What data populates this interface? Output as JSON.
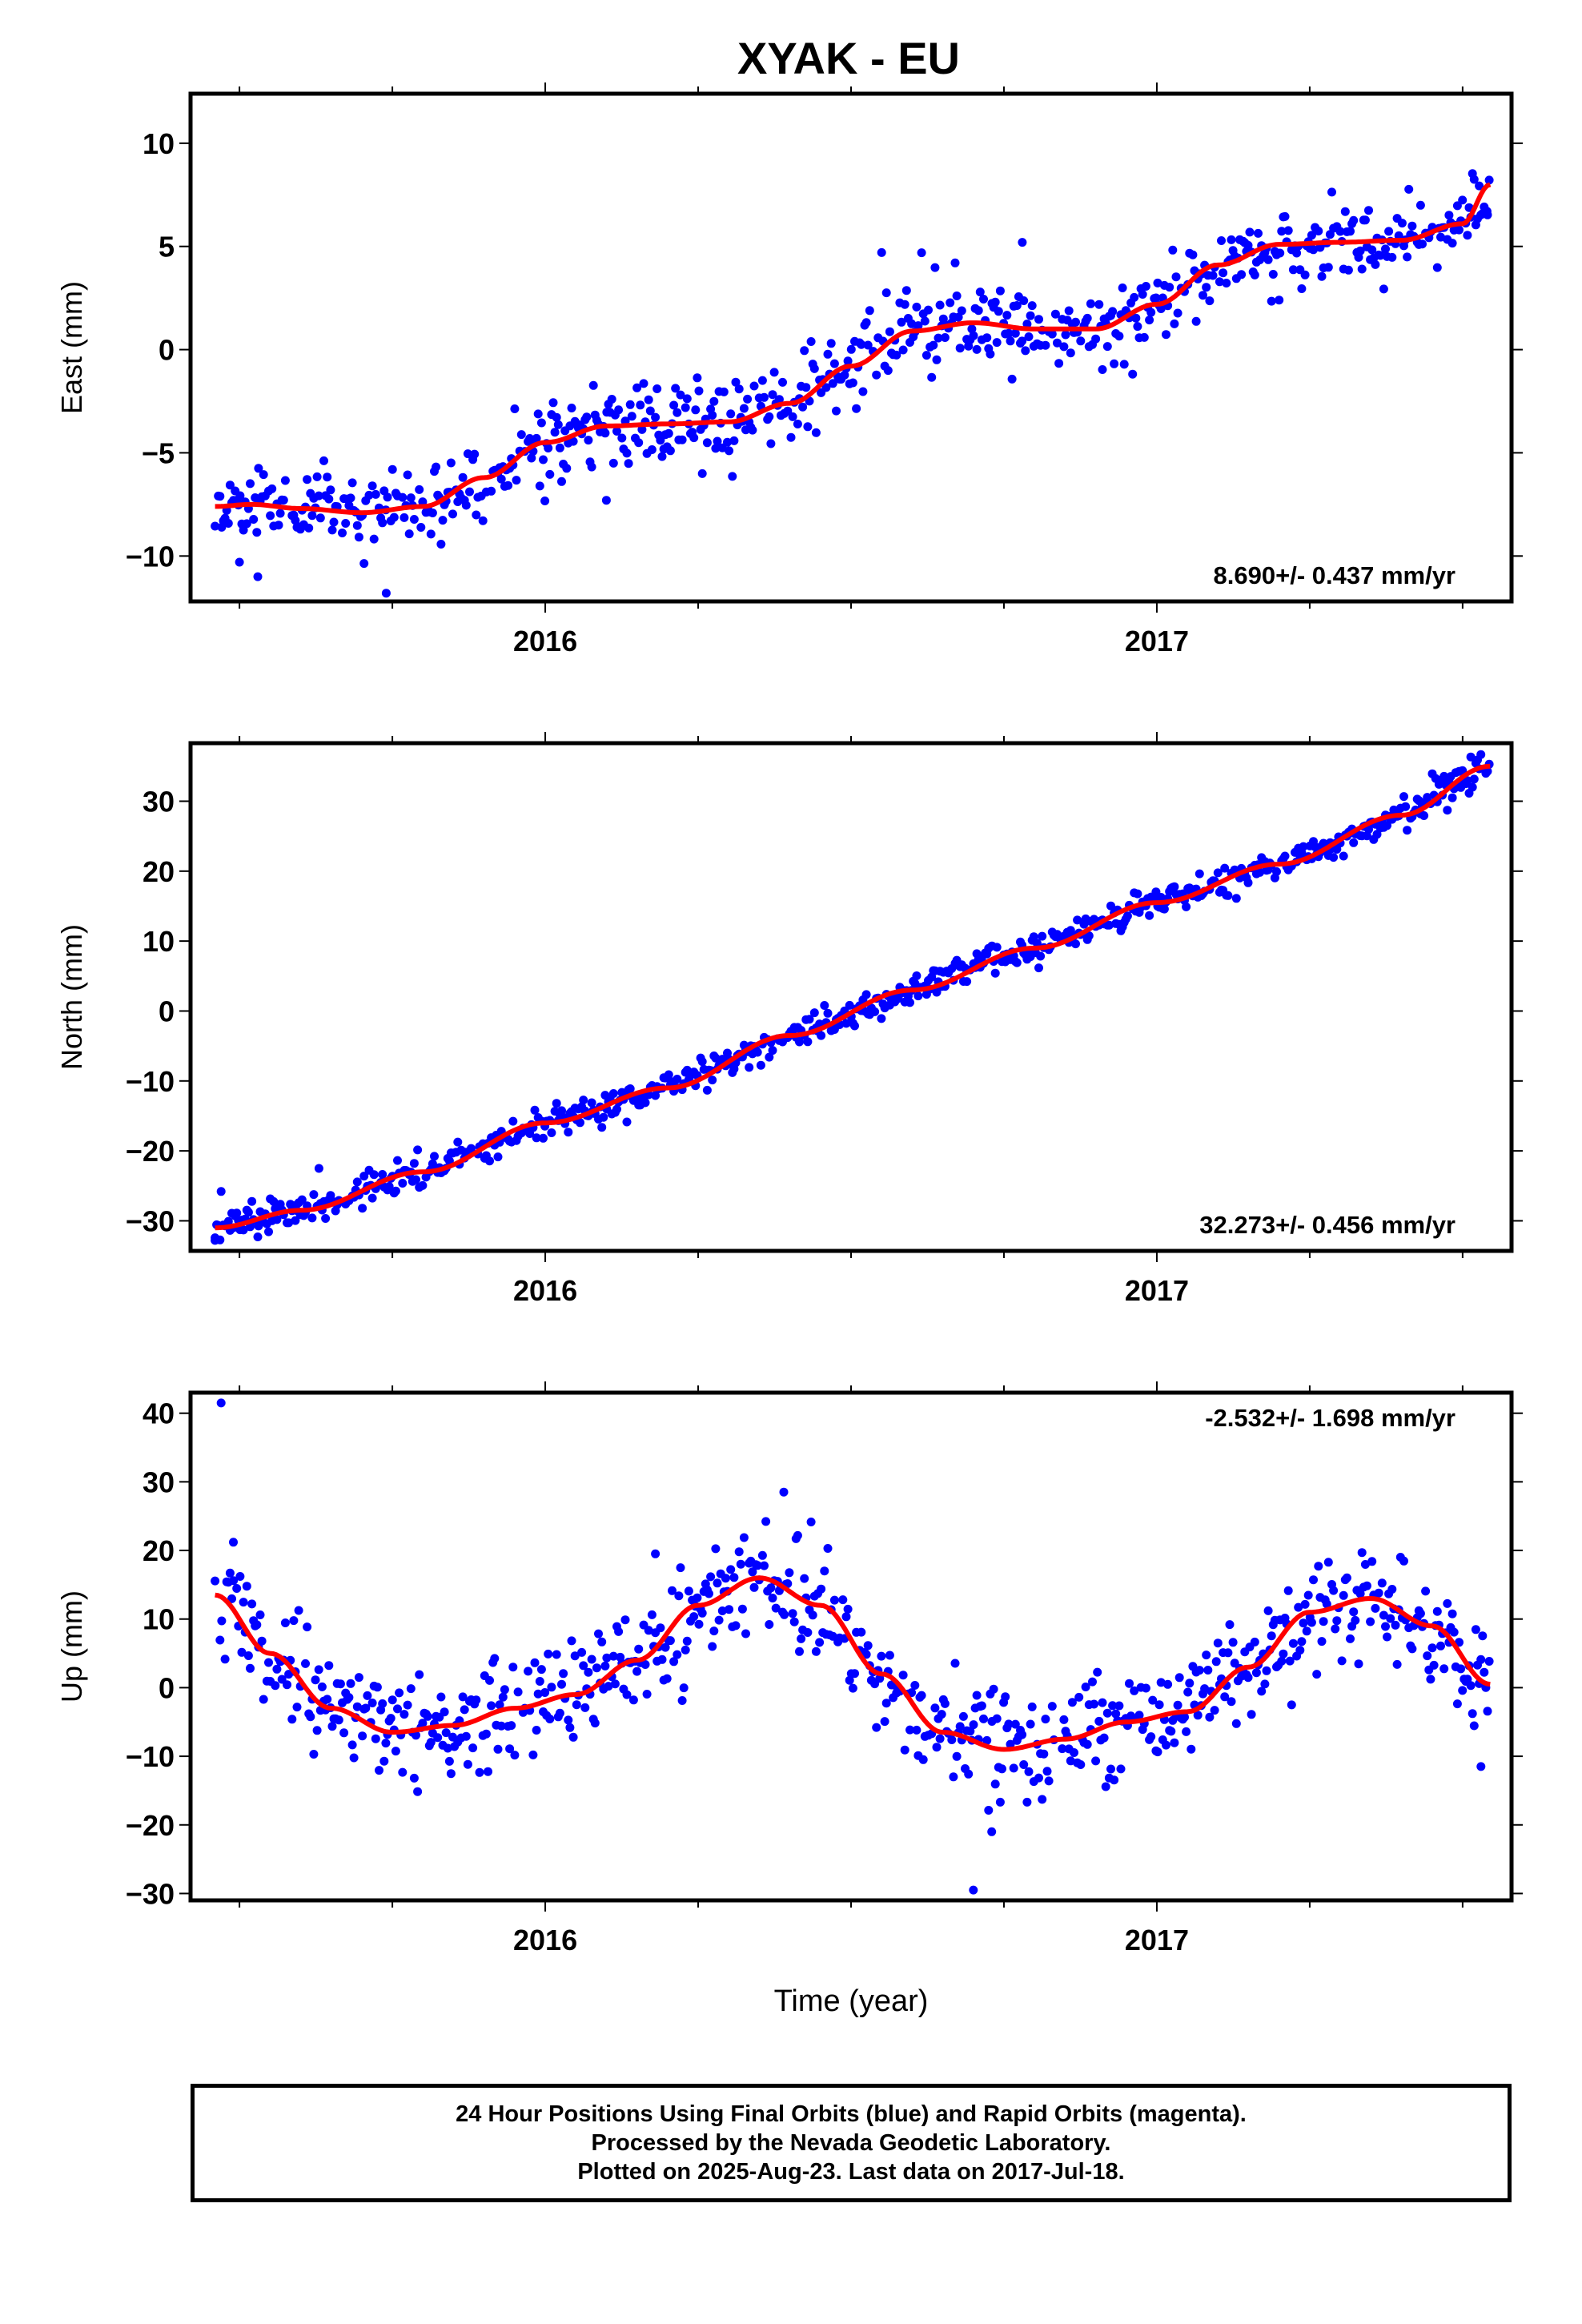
{
  "title": "XYAK - EU",
  "colors": {
    "points": "#0000ff",
    "fit": "#ff0000",
    "axes": "#000000"
  },
  "footer": {
    "line1": "24 Hour Positions Using Final Orbits (blue) and Rapid Orbits (magenta).",
    "line2": "Processed by the Nevada Geodetic Laboratory.",
    "line3": "Plotted on 2025-Aug-23. Last data on 2017-Jul-18."
  },
  "chart_data": [
    {
      "type": "scatter",
      "ylabel": "East (mm)",
      "xlim": [
        2015.42,
        2017.58
      ],
      "ylim": [
        -12.2,
        12.4
      ],
      "yticks": [
        -10,
        -5,
        0,
        5,
        10
      ],
      "xticks_labeled": [
        2016,
        2017
      ],
      "grid": false,
      "rate_label": "8.690+/- 0.437 mm/yr",
      "rate_position": "bottom-right",
      "xstart": 2015.46,
      "xend": 2017.545,
      "fit_x": [
        2015.46,
        2015.52,
        2015.6,
        2015.7,
        2015.8,
        2015.9,
        2016.0,
        2016.1,
        2016.2,
        2016.3,
        2016.4,
        2016.5,
        2016.6,
        2016.7,
        2016.8,
        2016.9,
        2017.0,
        2017.1,
        2017.2,
        2017.3,
        2017.4,
        2017.5,
        2017.545
      ],
      "fit_y": [
        -7.6,
        -7.5,
        -7.7,
        -7.9,
        -7.6,
        -6.2,
        -4.5,
        -3.7,
        -3.6,
        -3.5,
        -2.6,
        -0.8,
        0.9,
        1.3,
        1.0,
        1.0,
        2.2,
        4.1,
        5.1,
        5.2,
        5.3,
        6.1,
        8.0
      ],
      "noise": 1.0,
      "outliers": [
        [
          2015.5,
          -10.3
        ],
        [
          2015.53,
          -11.0
        ],
        [
          2015.74,
          -11.8
        ],
        [
          2016.1,
          -7.3
        ],
        [
          2016.55,
          4.7
        ],
        [
          2016.78,
          5.2
        ],
        [
          2017.2,
          2.4
        ],
        [
          2017.54,
          6.7
        ]
      ],
      "seed": 11
    },
    {
      "type": "scatter",
      "ylabel": "North (mm)",
      "xlim": [
        2015.42,
        2017.58
      ],
      "ylim": [
        -34.3,
        38.3
      ],
      "yticks": [
        -30,
        -20,
        -10,
        0,
        10,
        20,
        30
      ],
      "xticks_labeled": [
        2016,
        2017
      ],
      "grid": false,
      "rate_label": "32.273+/- 0.456 mm/yr",
      "rate_position": "bottom-right",
      "xstart": 2015.46,
      "xend": 2017.545,
      "fit_x": [
        2015.46,
        2015.6,
        2015.8,
        2016.0,
        2016.2,
        2016.4,
        2016.6,
        2016.8,
        2017.0,
        2017.2,
        2017.4,
        2017.545
      ],
      "fit_y": [
        -31.0,
        -28.5,
        -23.0,
        -16.0,
        -11.0,
        -3.5,
        3.0,
        9.0,
        15.5,
        21.0,
        28.0,
        35.0
      ],
      "noise": 1.1,
      "outliers": [
        [
          2015.47,
          -25.8
        ],
        [
          2015.63,
          -22.5
        ],
        [
          2015.46,
          -32.8
        ],
        [
          2015.53,
          -32.3
        ]
      ],
      "seed": 23
    },
    {
      "type": "scatter",
      "ylabel": "Up (mm)",
      "xlabel": "Time (year)",
      "xlim": [
        2015.42,
        2017.58
      ],
      "ylim": [
        -31.0,
        43.0
      ],
      "yticks": [
        -30,
        -20,
        -10,
        0,
        10,
        20,
        30,
        40
      ],
      "xticks_labeled": [
        2016,
        2017
      ],
      "grid": false,
      "rate_label": "-2.532+/- 1.698 mm/yr",
      "rate_position": "top-right",
      "xstart": 2015.46,
      "xend": 2017.545,
      "fit_x": [
        2015.46,
        2015.55,
        2015.65,
        2015.75,
        2015.85,
        2015.95,
        2016.05,
        2016.15,
        2016.25,
        2016.35,
        2016.45,
        2016.55,
        2016.65,
        2016.75,
        2016.85,
        2016.95,
        2017.05,
        2017.15,
        2017.25,
        2017.35,
        2017.45,
        2017.545
      ],
      "fit_y": [
        13.5,
        5.0,
        -3.0,
        -6.5,
        -5.5,
        -3.0,
        -1.0,
        4.0,
        12.0,
        16.0,
        12.0,
        2.0,
        -6.5,
        -9.0,
        -7.5,
        -5.0,
        -3.5,
        3.0,
        11.0,
        13.0,
        9.0,
        0.5
      ],
      "noise": 3.8,
      "outliers": [
        [
          2015.47,
          41.5
        ],
        [
          2015.49,
          21.2
        ],
        [
          2016.39,
          28.5
        ],
        [
          2016.73,
          -21.0
        ],
        [
          2016.7,
          -29.5
        ],
        [
          2017.53,
          -11.5
        ],
        [
          2016.18,
          19.5
        ]
      ],
      "seed": 37
    }
  ]
}
